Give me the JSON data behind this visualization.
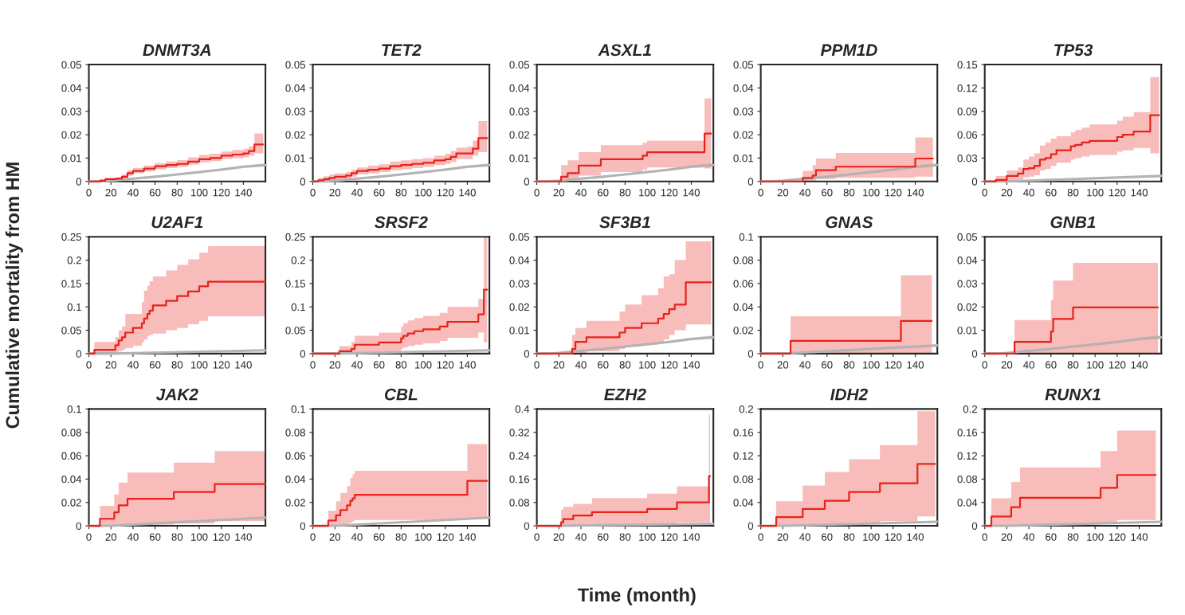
{
  "chart_data": [
    {
      "type": "step",
      "title": "DNMT3A",
      "ylabel": "Cumulative mortality from HM",
      "xlim": [
        0,
        160
      ],
      "xticks": [
        0,
        20,
        40,
        60,
        80,
        100,
        120,
        140
      ],
      "ylim": [
        0,
        0.05
      ],
      "yticks": [
        0,
        0.01,
        0.02,
        0.03,
        0.04,
        0.05
      ],
      "series": [
        {
          "type": "line",
          "color": "#b3b3b3",
          "x": [
            0,
            10,
            20,
            40,
            60,
            80,
            100,
            120,
            140,
            160
          ],
          "values": [
            0,
            0,
            0.0003,
            0.0012,
            0.002,
            0.003,
            0.004,
            0.005,
            0.0063,
            0.007
          ],
          "lower": [
            0,
            0,
            0.0002,
            0.001,
            0.0017,
            0.0026,
            0.0035,
            0.0045,
            0.0057,
            0.0063
          ],
          "upper": [
            0,
            0,
            0.0004,
            0.0014,
            0.0023,
            0.0034,
            0.0045,
            0.0056,
            0.0069,
            0.0078
          ]
        },
        {
          "color": "#e8221b",
          "x": [
            0,
            10,
            15,
            25,
            30,
            35,
            40,
            50,
            60,
            70,
            80,
            90,
            100,
            110,
            120,
            130,
            140,
            145,
            150,
            158
          ],
          "values": [
            0,
            0.0003,
            0.001,
            0.0012,
            0.002,
            0.0035,
            0.0045,
            0.0055,
            0.0065,
            0.007,
            0.0075,
            0.0085,
            0.0095,
            0.01,
            0.011,
            0.0115,
            0.012,
            0.013,
            0.0158,
            0.0158
          ],
          "lower": [
            0,
            0,
            0.0005,
            0.0007,
            0.0013,
            0.0025,
            0.0035,
            0.0043,
            0.0052,
            0.0057,
            0.0062,
            0.0072,
            0.0082,
            0.0087,
            0.0095,
            0.01,
            0.0103,
            0.011,
            0.012,
            0.012
          ],
          "upper": [
            0,
            0.001,
            0.0015,
            0.0018,
            0.003,
            0.0048,
            0.0058,
            0.0068,
            0.0078,
            0.0085,
            0.0091,
            0.0103,
            0.0113,
            0.0118,
            0.0128,
            0.0135,
            0.014,
            0.015,
            0.0205,
            0.0205
          ]
        }
      ]
    },
    {
      "type": "step",
      "title": "TET2",
      "xlim": [
        0,
        160
      ],
      "xticks": [
        0,
        20,
        40,
        60,
        80,
        100,
        120,
        140
      ],
      "ylim": [
        0,
        0.05
      ],
      "yticks": [
        0,
        0.01,
        0.02,
        0.03,
        0.04,
        0.05
      ],
      "series": [
        {
          "type": "line",
          "color": "#b3b3b3",
          "x": [
            0,
            10,
            20,
            40,
            60,
            80,
            100,
            120,
            140,
            160
          ],
          "values": [
            0,
            0,
            0.0003,
            0.0012,
            0.002,
            0.003,
            0.004,
            0.005,
            0.0063,
            0.007
          ],
          "lower": [
            0,
            0,
            0.0002,
            0.001,
            0.0017,
            0.0026,
            0.0035,
            0.0045,
            0.0057,
            0.0063
          ],
          "upper": [
            0,
            0,
            0.0004,
            0.0014,
            0.0023,
            0.0034,
            0.0045,
            0.0056,
            0.0069,
            0.0078
          ]
        },
        {
          "color": "#e8221b",
          "x": [
            0,
            5,
            10,
            15,
            20,
            30,
            35,
            40,
            50,
            60,
            70,
            80,
            90,
            100,
            110,
            120,
            125,
            130,
            140,
            145,
            150,
            158
          ],
          "values": [
            0,
            0.0005,
            0.001,
            0.0015,
            0.002,
            0.0025,
            0.0035,
            0.0045,
            0.005,
            0.0055,
            0.0065,
            0.007,
            0.0075,
            0.008,
            0.009,
            0.0095,
            0.0105,
            0.012,
            0.012,
            0.014,
            0.0185,
            0.0185
          ],
          "lower": [
            0,
            0,
            0.0002,
            0.0005,
            0.0009,
            0.0012,
            0.002,
            0.003,
            0.0035,
            0.004,
            0.0048,
            0.0052,
            0.0057,
            0.0062,
            0.007,
            0.0075,
            0.0083,
            0.0095,
            0.0095,
            0.011,
            0.0125,
            0.0125
          ],
          "upper": [
            0,
            0.0015,
            0.0022,
            0.003,
            0.0035,
            0.004,
            0.005,
            0.006,
            0.0068,
            0.0073,
            0.0085,
            0.009,
            0.0095,
            0.01,
            0.011,
            0.0118,
            0.013,
            0.0145,
            0.015,
            0.0175,
            0.0258,
            0.0258
          ]
        }
      ]
    },
    {
      "type": "step",
      "title": "ASXL1",
      "xlim": [
        0,
        160
      ],
      "xticks": [
        0,
        20,
        40,
        60,
        80,
        100,
        120,
        140
      ],
      "ylim": [
        0,
        0.05
      ],
      "yticks": [
        0,
        0.01,
        0.02,
        0.03,
        0.04,
        0.05
      ],
      "series": [
        {
          "type": "line",
          "color": "#b3b3b3",
          "x": [
            0,
            10,
            20,
            40,
            60,
            80,
            100,
            120,
            140,
            160
          ],
          "values": [
            0,
            0,
            0.0003,
            0.0012,
            0.002,
            0.003,
            0.004,
            0.005,
            0.0063,
            0.007
          ],
          "lower": [
            0,
            0,
            0.0002,
            0.001,
            0.0017,
            0.0026,
            0.0035,
            0.0045,
            0.0057,
            0.0063
          ],
          "upper": [
            0,
            0,
            0.0004,
            0.0014,
            0.0023,
            0.0034,
            0.0045,
            0.0056,
            0.0069,
            0.0078
          ]
        },
        {
          "color": "#e8221b",
          "x": [
            0,
            20,
            22,
            28,
            38,
            58,
            96,
            100,
            152,
            158
          ],
          "values": [
            0,
            0,
            0.002,
            0.0035,
            0.0068,
            0.0095,
            0.011,
            0.0125,
            0.0205,
            0.0205
          ],
          "lower": [
            0,
            0,
            0.0003,
            0.001,
            0.0025,
            0.004,
            0.005,
            0.006,
            0.0055,
            0.0055
          ],
          "upper": [
            0,
            0,
            0.007,
            0.009,
            0.0125,
            0.0155,
            0.0165,
            0.0175,
            0.0355,
            0.0355
          ]
        }
      ]
    },
    {
      "type": "step",
      "title": "PPM1D",
      "xlim": [
        0,
        160
      ],
      "xticks": [
        0,
        20,
        40,
        60,
        80,
        100,
        120,
        140
      ],
      "ylim": [
        0,
        0.05
      ],
      "yticks": [
        0,
        0.01,
        0.02,
        0.03,
        0.04,
        0.05
      ],
      "series": [
        {
          "type": "line",
          "color": "#b3b3b3",
          "x": [
            0,
            10,
            20,
            40,
            60,
            80,
            100,
            120,
            140,
            160
          ],
          "values": [
            0,
            0,
            0.0003,
            0.0012,
            0.002,
            0.003,
            0.004,
            0.005,
            0.0063,
            0.007
          ],
          "lower": [
            0,
            0,
            0.0002,
            0.001,
            0.0017,
            0.0026,
            0.0035,
            0.0045,
            0.0057,
            0.0063
          ],
          "upper": [
            0,
            0,
            0.0004,
            0.0014,
            0.0023,
            0.0034,
            0.0045,
            0.0056,
            0.0069,
            0.0078
          ]
        },
        {
          "color": "#e8221b",
          "x": [
            0,
            38,
            47,
            50,
            68,
            140,
            156
          ],
          "values": [
            0,
            0.0015,
            0.0025,
            0.0048,
            0.0063,
            0.0098,
            0.0098
          ],
          "lower": [
            0,
            0,
            0.0003,
            0.001,
            0.0015,
            0.002,
            0.002
          ],
          "upper": [
            0,
            0.0045,
            0.007,
            0.0098,
            0.0122,
            0.0188,
            0.0188
          ]
        }
      ]
    },
    {
      "type": "step",
      "title": "TP53",
      "xlim": [
        0,
        160
      ],
      "xticks": [
        0,
        20,
        40,
        60,
        80,
        100,
        120,
        140
      ],
      "ylim": [
        0,
        0.15
      ],
      "yticks": [
        0,
        0.03,
        0.06,
        0.09,
        0.12,
        0.15
      ],
      "series": [
        {
          "type": "line",
          "color": "#b3b3b3",
          "x": [
            0,
            20,
            160
          ],
          "values": [
            0,
            0,
            0.007
          ]
        },
        {
          "color": "#e8221b",
          "x": [
            0,
            10,
            20,
            30,
            35,
            40,
            45,
            50,
            55,
            60,
            65,
            78,
            82,
            88,
            95,
            120,
            125,
            135,
            150,
            158
          ],
          "values": [
            0,
            0.002,
            0.007,
            0.01,
            0.016,
            0.017,
            0.02,
            0.028,
            0.03,
            0.035,
            0.04,
            0.045,
            0.047,
            0.05,
            0.052,
            0.057,
            0.06,
            0.064,
            0.085,
            0.085
          ],
          "lower": [
            0,
            0,
            0.001,
            0.002,
            0.005,
            0.006,
            0.008,
            0.014,
            0.016,
            0.02,
            0.024,
            0.028,
            0.03,
            0.032,
            0.034,
            0.038,
            0.04,
            0.043,
            0.036,
            0.036
          ],
          "upper": [
            0,
            0.007,
            0.014,
            0.018,
            0.028,
            0.032,
            0.036,
            0.046,
            0.05,
            0.055,
            0.058,
            0.063,
            0.066,
            0.069,
            0.073,
            0.078,
            0.083,
            0.089,
            0.134,
            0.134
          ]
        }
      ]
    },
    {
      "type": "step",
      "title": "U2AF1",
      "xlim": [
        0,
        160
      ],
      "xticks": [
        0,
        20,
        40,
        60,
        80,
        100,
        120,
        140
      ],
      "ylim": [
        0,
        0.25
      ],
      "yticks": [
        0,
        0.05,
        0.1,
        0.15,
        0.2,
        0.25
      ],
      "series": [
        {
          "type": "line",
          "color": "#b3b3b3",
          "x": [
            0,
            20,
            160
          ],
          "values": [
            0,
            0,
            0.007
          ]
        },
        {
          "color": "#e8221b",
          "x": [
            0,
            5,
            24,
            27,
            30,
            33,
            40,
            48,
            50,
            53,
            55,
            58,
            70,
            80,
            90,
            100,
            108,
            160
          ],
          "values": [
            0,
            0.008,
            0.018,
            0.028,
            0.035,
            0.045,
            0.055,
            0.065,
            0.075,
            0.085,
            0.092,
            0.103,
            0.113,
            0.123,
            0.133,
            0.144,
            0.154,
            0.154
          ],
          "lower": [
            0,
            0,
            0.002,
            0.005,
            0.008,
            0.012,
            0.017,
            0.024,
            0.03,
            0.037,
            0.04,
            0.043,
            0.05,
            0.055,
            0.063,
            0.07,
            0.08,
            0.08
          ],
          "upper": [
            0,
            0.025,
            0.035,
            0.05,
            0.058,
            0.085,
            0.085,
            0.11,
            0.135,
            0.145,
            0.155,
            0.165,
            0.178,
            0.19,
            0.202,
            0.216,
            0.23,
            0.23
          ]
        }
      ]
    },
    {
      "type": "step",
      "title": "SRSF2",
      "xlim": [
        0,
        160
      ],
      "xticks": [
        0,
        20,
        40,
        60,
        80,
        100,
        120,
        140
      ],
      "ylim": [
        0,
        0.25
      ],
      "yticks": [
        0,
        0.05,
        0.1,
        0.15,
        0.2,
        0.25
      ],
      "series": [
        {
          "type": "line",
          "color": "#b3b3b3",
          "x": [
            0,
            20,
            160
          ],
          "values": [
            0,
            0,
            0.007
          ]
        },
        {
          "color": "#e8221b",
          "x": [
            0,
            24,
            35,
            38,
            60,
            80,
            82,
            86,
            92,
            100,
            115,
            122,
            140,
            150,
            155,
            158
          ],
          "values": [
            0,
            0.005,
            0.01,
            0.019,
            0.024,
            0.033,
            0.038,
            0.043,
            0.048,
            0.052,
            0.058,
            0.068,
            0.068,
            0.084,
            0.137,
            0.137
          ],
          "lower": [
            0,
            0,
            0,
            0.002,
            0.005,
            0.01,
            0.013,
            0.016,
            0.019,
            0.022,
            0.027,
            0.034,
            0.034,
            0.045,
            0.024,
            0.024
          ],
          "upper": [
            0,
            0.016,
            0.025,
            0.038,
            0.045,
            0.058,
            0.065,
            0.071,
            0.076,
            0.081,
            0.087,
            0.1,
            0.1,
            0.117,
            0.25,
            0.25
          ]
        }
      ]
    },
    {
      "type": "step",
      "title": "SF3B1",
      "xlim": [
        0,
        160
      ],
      "xticks": [
        0,
        20,
        40,
        60,
        80,
        100,
        120,
        140
      ],
      "ylim": [
        0,
        0.05
      ],
      "yticks": [
        0,
        0.01,
        0.02,
        0.03,
        0.04,
        0.05
      ],
      "series": [
        {
          "type": "line",
          "color": "#b3b3b3",
          "x": [
            0,
            10,
            20,
            40,
            60,
            80,
            100,
            120,
            140,
            160
          ],
          "values": [
            0,
            0,
            0.0003,
            0.0012,
            0.002,
            0.003,
            0.004,
            0.005,
            0.0063,
            0.007
          ],
          "lower": [
            0,
            0,
            0.0002,
            0.001,
            0.0017,
            0.0026,
            0.0035,
            0.0045,
            0.0057,
            0.0063
          ],
          "upper": [
            0,
            0,
            0.0004,
            0.0014,
            0.0023,
            0.0034,
            0.0045,
            0.0056,
            0.0069,
            0.0078
          ]
        },
        {
          "color": "#e8221b",
          "x": [
            0,
            32,
            35,
            45,
            70,
            75,
            80,
            90,
            95,
            100,
            110,
            115,
            120,
            125,
            135,
            158
          ],
          "values": [
            0,
            0.002,
            0.005,
            0.007,
            0.007,
            0.009,
            0.011,
            0.011,
            0.013,
            0.013,
            0.015,
            0.017,
            0.019,
            0.021,
            0.0305,
            0.0305
          ],
          "lower": [
            0,
            0,
            0,
            0.001,
            0.001,
            0.002,
            0.003,
            0.003,
            0.004,
            0.004,
            0.005,
            0.006,
            0.008,
            0.01,
            0.0125,
            0.0125
          ],
          "upper": [
            0,
            0.008,
            0.011,
            0.014,
            0.014,
            0.018,
            0.021,
            0.021,
            0.025,
            0.025,
            0.028,
            0.033,
            0.034,
            0.04,
            0.048,
            0.048
          ]
        }
      ]
    },
    {
      "type": "step",
      "title": "GNAS",
      "xlim": [
        0,
        160
      ],
      "xticks": [
        0,
        20,
        40,
        60,
        80,
        100,
        120,
        140
      ],
      "ylim": [
        0,
        0.1
      ],
      "yticks": [
        0,
        0.02,
        0.04,
        0.06,
        0.08,
        0.1
      ],
      "series": [
        {
          "type": "line",
          "color": "#b3b3b3",
          "x": [
            0,
            20,
            160
          ],
          "values": [
            0,
            0,
            0.007
          ]
        },
        {
          "color": "#e8221b",
          "x": [
            0,
            27,
            127,
            155
          ],
          "values": [
            0,
            0.011,
            0.028,
            0.028
          ],
          "lower": [
            0,
            0,
            0,
            0
          ],
          "upper": [
            0,
            0.032,
            0.067,
            0.067
          ]
        }
      ]
    },
    {
      "type": "step",
      "title": "GNB1",
      "xlim": [
        0,
        160
      ],
      "xticks": [
        0,
        20,
        40,
        60,
        80,
        100,
        120,
        140
      ],
      "ylim": [
        0,
        0.05
      ],
      "yticks": [
        0,
        0.01,
        0.02,
        0.03,
        0.04,
        0.05
      ],
      "series": [
        {
          "type": "line",
          "color": "#b3b3b3",
          "x": [
            0,
            10,
            20,
            40,
            60,
            80,
            100,
            120,
            140,
            160
          ],
          "values": [
            0,
            0,
            0.0003,
            0.0012,
            0.002,
            0.003,
            0.004,
            0.005,
            0.0063,
            0.007
          ],
          "lower": [
            0,
            0,
            0.0002,
            0.001,
            0.0017,
            0.0026,
            0.0035,
            0.0045,
            0.0057,
            0.0063
          ],
          "upper": [
            0,
            0,
            0.0004,
            0.0014,
            0.0023,
            0.0034,
            0.0045,
            0.0056,
            0.0069,
            0.0078
          ]
        },
        {
          "color": "#e8221b",
          "x": [
            0,
            27,
            60,
            62,
            80,
            157
          ],
          "values": [
            0,
            0.005,
            0.0095,
            0.0148,
            0.0198,
            0.0198
          ],
          "lower": [
            0,
            0,
            0,
            0,
            0,
            0
          ],
          "upper": [
            0,
            0.0144,
            0.023,
            0.0312,
            0.0388,
            0.0388
          ]
        }
      ]
    },
    {
      "type": "step",
      "title": "JAK2",
      "xlim": [
        0,
        160
      ],
      "xticks": [
        0,
        20,
        40,
        60,
        80,
        100,
        120,
        140
      ],
      "ylim": [
        0,
        0.1
      ],
      "yticks": [
        0,
        0.02,
        0.04,
        0.06,
        0.08,
        0.1
      ],
      "series": [
        {
          "type": "line",
          "color": "#b3b3b3",
          "x": [
            0,
            20,
            160
          ],
          "values": [
            0,
            0,
            0.007
          ]
        },
        {
          "color": "#e8221b",
          "x": [
            0,
            10,
            23,
            27,
            35,
            77,
            114,
            160
          ],
          "values": [
            0,
            0.006,
            0.0115,
            0.0175,
            0.0232,
            0.029,
            0.0357,
            0.0357
          ],
          "lower": [
            0,
            0,
            0,
            0,
            0.001,
            0.002,
            0.004,
            0.004
          ],
          "upper": [
            0,
            0.017,
            0.027,
            0.037,
            0.0455,
            0.054,
            0.064,
            0.064
          ]
        }
      ]
    },
    {
      "type": "step",
      "title": "CBL",
      "xlim": [
        0,
        160
      ],
      "xticks": [
        0,
        20,
        40,
        60,
        80,
        100,
        120,
        140
      ],
      "ylim": [
        0,
        0.1
      ],
      "yticks": [
        0,
        0.02,
        0.04,
        0.06,
        0.08,
        0.1
      ],
      "series": [
        {
          "type": "line",
          "color": "#b3b3b3",
          "x": [
            0,
            20,
            160
          ],
          "values": [
            0,
            0,
            0.007
          ]
        },
        {
          "color": "#e8221b",
          "x": [
            0,
            14,
            21,
            25,
            31,
            34,
            36,
            38,
            140,
            158
          ],
          "values": [
            0,
            0.0045,
            0.009,
            0.0135,
            0.0175,
            0.0215,
            0.0235,
            0.0265,
            0.0385,
            0.0385
          ],
          "lower": [
            0,
            0,
            0,
            0.001,
            0.002,
            0.003,
            0.004,
            0.005,
            0.006,
            0.006
          ],
          "upper": [
            0,
            0.013,
            0.021,
            0.028,
            0.034,
            0.041,
            0.044,
            0.047,
            0.07,
            0.07
          ]
        }
      ]
    },
    {
      "type": "step",
      "title": "EZH2",
      "xlabel": "Time (month)",
      "xlim": [
        0,
        160
      ],
      "xticks": [
        0,
        20,
        40,
        60,
        80,
        100,
        120,
        140
      ],
      "ylim": [
        0,
        0.4
      ],
      "yticks": [
        0,
        0.08,
        0.16,
        0.24,
        0.32,
        0.4
      ],
      "series": [
        {
          "type": "line",
          "color": "#b3b3b3",
          "x": [
            0,
            20,
            160
          ],
          "values": [
            0,
            0,
            0.007
          ]
        },
        {
          "color": "#e8221b",
          "x": [
            0,
            22,
            24,
            33,
            50,
            100,
            127,
            156,
            157
          ],
          "values": [
            0,
            0.012,
            0.023,
            0.035,
            0.047,
            0.058,
            0.08,
            0.17,
            0.17
          ],
          "lower": [
            0,
            0,
            0,
            0.002,
            0.005,
            0.008,
            0.012,
            0.012,
            0.012
          ],
          "upper": [
            0,
            0.055,
            0.065,
            0.075,
            0.095,
            0.11,
            0.135,
            0.38,
            0.38
          ]
        }
      ]
    },
    {
      "type": "step",
      "title": "IDH2",
      "xlim": [
        0,
        160
      ],
      "xticks": [
        0,
        20,
        40,
        60,
        80,
        100,
        120,
        140
      ],
      "ylim": [
        0,
        0.2
      ],
      "yticks": [
        0,
        0.04,
        0.08,
        0.12,
        0.16,
        0.2
      ],
      "series": [
        {
          "type": "line",
          "color": "#b3b3b3",
          "x": [
            0,
            20,
            160
          ],
          "values": [
            0,
            0,
            0.007
          ]
        },
        {
          "color": "#e8221b",
          "x": [
            0,
            14,
            38,
            58,
            80,
            108,
            142,
            158
          ],
          "values": [
            0,
            0.015,
            0.029,
            0.043,
            0.058,
            0.073,
            0.106,
            0.106
          ],
          "lower": [
            0,
            0,
            0.001,
            0.003,
            0.005,
            0.008,
            0.016,
            0.016
          ],
          "upper": [
            0,
            0.042,
            0.069,
            0.092,
            0.114,
            0.138,
            0.196,
            0.196
          ]
        }
      ]
    },
    {
      "type": "step",
      "title": "RUNX1",
      "xlim": [
        0,
        160
      ],
      "xticks": [
        0,
        20,
        40,
        60,
        80,
        100,
        120,
        140
      ],
      "ylim": [
        0,
        0.2
      ],
      "yticks": [
        0,
        0.04,
        0.08,
        0.12,
        0.16,
        0.2
      ],
      "series": [
        {
          "type": "line",
          "color": "#b3b3b3",
          "x": [
            0,
            20,
            160
          ],
          "values": [
            0,
            0,
            0.007
          ]
        },
        {
          "color": "#e8221b",
          "x": [
            0,
            6,
            24,
            32,
            105,
            120,
            155
          ],
          "values": [
            0,
            0.016,
            0.032,
            0.048,
            0.065,
            0.087,
            0.087
          ],
          "lower": [
            0,
            0,
            0.001,
            0.002,
            0.004,
            0.01,
            0.01
          ],
          "upper": [
            0,
            0.047,
            0.075,
            0.1,
            0.128,
            0.163,
            0.163
          ]
        }
      ]
    }
  ]
}
